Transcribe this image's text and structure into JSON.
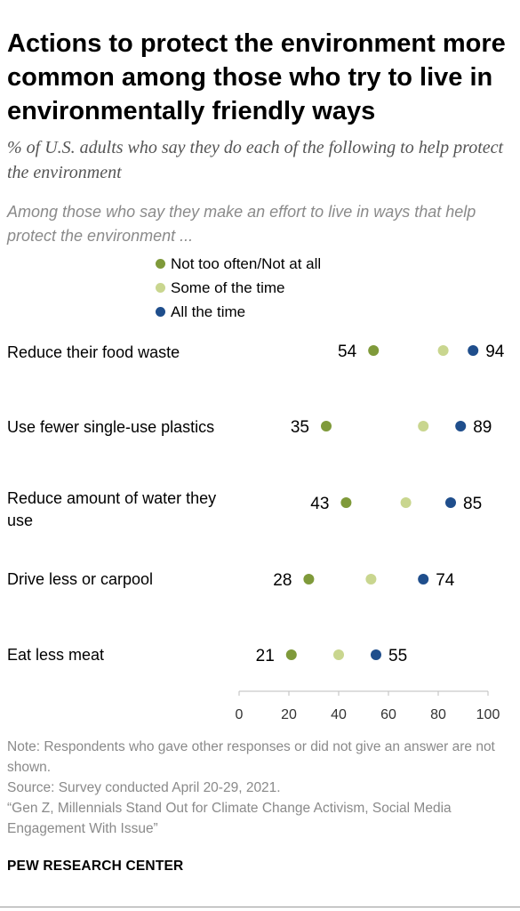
{
  "title": "Actions to protect the environment more common among those who try to live in environmentally friendly ways",
  "subtitle": "% of U.S. adults who say they do each of the following to help protect the environment",
  "group_note": "Among those who say they make an effort to live in ways that help protect the environment ...",
  "legend": [
    {
      "label": "Not too often/Not at all",
      "color": "#7f9a3a"
    },
    {
      "label": "Some of the time",
      "color": "#c9d68f"
    },
    {
      "label": "All the time",
      "color": "#1f4e8c"
    }
  ],
  "chart_data": {
    "type": "scatter",
    "subtype": "dot-plot",
    "xlim": [
      0,
      100
    ],
    "xticks": [
      "0",
      "20",
      "40",
      "60",
      "80",
      "100"
    ],
    "categories": [
      "Reduce their food waste",
      "Use fewer single-use plastics",
      "Reduce amount of water they use",
      "Drive less or carpool",
      "Eat less meat"
    ],
    "series": [
      {
        "name": "Not too often/Not at all",
        "color": "#7f9a3a",
        "values": [
          54,
          35,
          43,
          28,
          21
        ],
        "labeled": true
      },
      {
        "name": "Some of the time",
        "color": "#c9d68f",
        "values": [
          82,
          74,
          67,
          53,
          40
        ],
        "labeled": false
      },
      {
        "name": "All the time",
        "color": "#1f4e8c",
        "values": [
          94,
          89,
          85,
          74,
          55
        ],
        "labeled": true
      }
    ]
  },
  "notes": {
    "note": "Note: Respondents who gave other responses or did not give an answer are not shown.",
    "source": "Source: Survey conducted April 20-29, 2021.",
    "report": "“Gen Z, Millennials Stand Out for Climate Change Activism, Social Media Engagement With Issue”"
  },
  "org": "PEW RESEARCH CENTER"
}
